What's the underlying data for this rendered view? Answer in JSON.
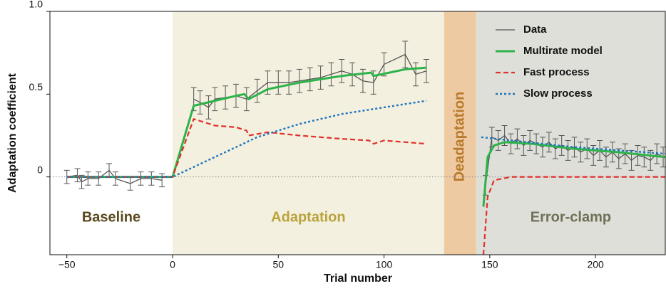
{
  "chart_data": {
    "type": "line",
    "x_label": "Trial number",
    "y_label": "Adaptation coefficient",
    "xlim": [
      -58,
      233
    ],
    "ylim": [
      -0.47,
      1.0
    ],
    "xticks": [
      {
        "value": -50,
        "label": "−50"
      },
      0,
      50,
      100,
      150,
      200
    ],
    "yticks": [
      0,
      0.5,
      {
        "value": 1,
        "label": "1.0"
      }
    ],
    "legend": "upper right",
    "regions": [
      {
        "label": "Baseline",
        "start": -58,
        "end": 0,
        "color": "#ffffff",
        "label_color": "#5a4a1e"
      },
      {
        "label": "Adaptation",
        "start": 0,
        "end": 128.4,
        "color": "#f4f0df",
        "label_color": "#b9a33c"
      },
      {
        "label": "Deadaptation",
        "start": 128.4,
        "end": 143.6,
        "color": "#eecaa2",
        "label_color": "#b87a2c"
      },
      {
        "label": "Error-clamp",
        "start": 143.6,
        "end": 233,
        "color": "#dfdfd9",
        "label_color": "#6f6f56"
      }
    ],
    "series": [
      {
        "name": "Data",
        "color": "#555555",
        "style": "solid",
        "width": 1.3,
        "x": [
          -50,
          -45,
          -43,
          -40,
          -35,
          -30,
          -27,
          -20,
          -15,
          -10,
          -5,
          0,
          10,
          13,
          17,
          20,
          25,
          30,
          35,
          40,
          45,
          50,
          55,
          60,
          65,
          70,
          75,
          80,
          85,
          90,
          95,
          100,
          110,
          115,
          120,
          145,
          148,
          151,
          154,
          157,
          160,
          163,
          166,
          169,
          172,
          175,
          178,
          181,
          184,
          187,
          190,
          193,
          196,
          199,
          202,
          205,
          208,
          211,
          214,
          217,
          220,
          223,
          226,
          229,
          232
        ],
        "values": [
          0,
          0.01,
          -0.03,
          -0.01,
          -0.01,
          0.04,
          -0.01,
          -0.04,
          -0.01,
          -0.01,
          -0.02,
          null,
          0.47,
          0.45,
          0.42,
          0.47,
          0.48,
          0.49,
          0.47,
          0.52,
          0.57,
          0.57,
          0.57,
          0.58,
          0.59,
          0.6,
          0.62,
          0.64,
          0.62,
          0.58,
          0.57,
          0.68,
          0.74,
          0.62,
          0.64,
          null,
          -0.05,
          0.24,
          0.22,
          0.25,
          0.2,
          0.23,
          0.19,
          0.22,
          0.2,
          0.18,
          0.21,
          0.17,
          0.19,
          0.16,
          0.18,
          0.15,
          0.17,
          0.13,
          0.16,
          0.12,
          0.15,
          0.11,
          0.14,
          0.1,
          0.13,
          0.12,
          0.1,
          0.14,
          0.12
        ],
        "errors": [
          0.04,
          0.04,
          0.04,
          0.04,
          0.04,
          0.04,
          0.04,
          0.04,
          0.04,
          0.04,
          0.04,
          null,
          0.07,
          0.07,
          0.07,
          0.07,
          0.07,
          0.07,
          0.07,
          0.07,
          0.07,
          0.07,
          0.07,
          0.07,
          0.07,
          0.07,
          0.07,
          0.07,
          0.07,
          0.07,
          0.07,
          0.07,
          0.08,
          0.07,
          0.07,
          null,
          0.06,
          0.06,
          0.06,
          0.06,
          0.06,
          0.06,
          0.06,
          0.06,
          0.06,
          0.06,
          0.06,
          0.06,
          0.06,
          0.06,
          0.06,
          0.06,
          0.06,
          0.06,
          0.06,
          0.06,
          0.06,
          0.06,
          0.06,
          0.06,
          0.06,
          0.06,
          0.06,
          0.06,
          0.06
        ]
      },
      {
        "name": "Multirate model",
        "color": "#2db34a",
        "style": "solid",
        "width": 3,
        "x": [
          -50,
          0,
          10,
          20,
          30,
          34,
          36,
          45,
          60,
          80,
          94,
          95,
          110,
          120,
          130,
          147,
          149,
          152,
          157,
          170,
          190,
          210,
          233
        ],
        "values": [
          0,
          0,
          0.43,
          0.46,
          0.49,
          0.5,
          0.47,
          0.53,
          0.57,
          0.61,
          0.63,
          0.61,
          0.65,
          0.66,
          null,
          -0.18,
          0.12,
          0.19,
          0.21,
          0.2,
          0.17,
          0.15,
          0.12
        ]
      },
      {
        "name": "Fast process",
        "color": "#e0312c",
        "style": "dashed",
        "width": 2.2,
        "x": [
          -50,
          0,
          10,
          20,
          30,
          35,
          36,
          45,
          60,
          80,
          93,
          95,
          100,
          120,
          130,
          147,
          149,
          152,
          160,
          233
        ],
        "values": [
          0,
          0,
          0.35,
          0.31,
          0.3,
          0.28,
          0.25,
          0.27,
          0.25,
          0.23,
          0.22,
          0.2,
          0.22,
          0.2,
          null,
          -0.47,
          -0.12,
          -0.02,
          0,
          0
        ]
      },
      {
        "name": "Slow process",
        "color": "#1b75bc",
        "style": "dotted",
        "width": 2.4,
        "x": [
          -50,
          0,
          20,
          40,
          60,
          80,
          100,
          120,
          130,
          146,
          160,
          190,
          233
        ],
        "values": [
          0,
          0,
          0.12,
          0.24,
          0.32,
          0.38,
          0.42,
          0.46,
          null,
          0.24,
          0.22,
          0.18,
          0.14
        ]
      }
    ]
  }
}
